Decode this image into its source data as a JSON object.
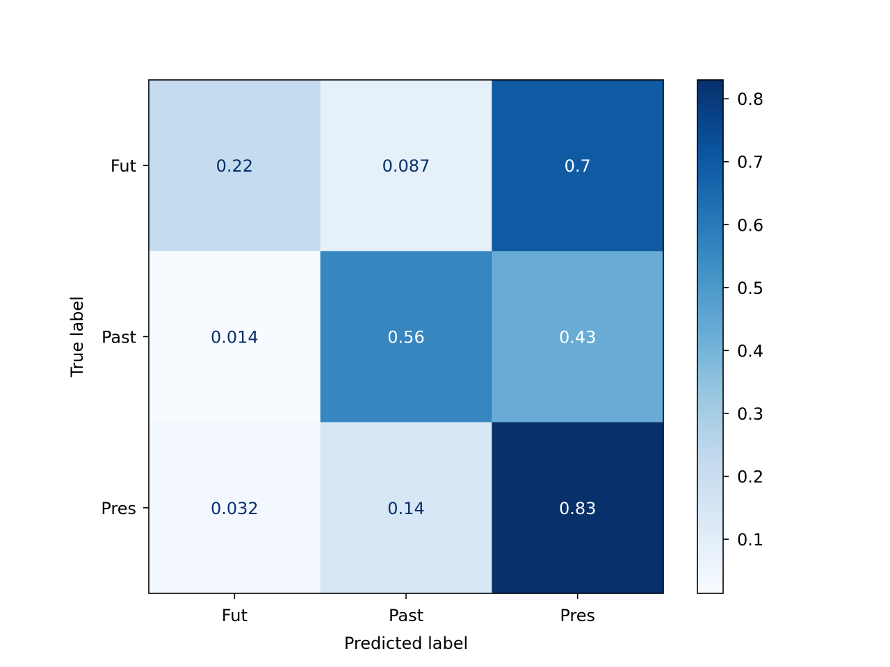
{
  "chart_data": {
    "type": "heatmap",
    "title": "",
    "xlabel": "Predicted label",
    "ylabel": "True label",
    "x_categories": [
      "Fut",
      "Past",
      "Pres"
    ],
    "y_categories": [
      "Fut",
      "Past",
      "Pres"
    ],
    "values": [
      [
        0.22,
        0.087,
        0.7
      ],
      [
        0.014,
        0.56,
        0.43
      ],
      [
        0.032,
        0.14,
        0.83
      ]
    ],
    "value_labels": [
      [
        "0.22",
        "0.087",
        "0.7"
      ],
      [
        "0.014",
        "0.56",
        "0.43"
      ],
      [
        "0.032",
        "0.14",
        "0.83"
      ]
    ],
    "colormap": "Blues",
    "colorbar": {
      "range": [
        0.014,
        0.83
      ],
      "ticks": [
        0.1,
        0.2,
        0.3,
        0.4,
        0.5,
        0.6,
        0.7,
        0.8
      ],
      "tick_labels": [
        "0.1",
        "0.2",
        "0.3",
        "0.4",
        "0.5",
        "0.6",
        "0.7",
        "0.8"
      ]
    },
    "grid": false,
    "legend": "colorbar-right"
  }
}
